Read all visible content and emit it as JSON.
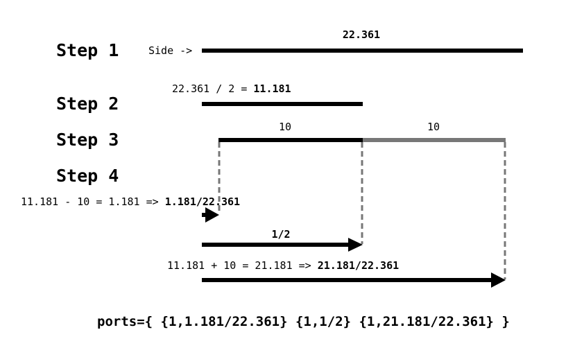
{
  "steps": {
    "step1": "Step 1",
    "step2": "Step 2",
    "step3": "Step 3",
    "step4": "Step 4"
  },
  "step1": {
    "side_label": "Side ->",
    "length": "22.361"
  },
  "step2": {
    "expression": "22.361 / 2 = ",
    "result": "11.181"
  },
  "step3": {
    "segment_black": "10",
    "segment_gray": "10"
  },
  "step4": {
    "port1_expression": "11.181 - 10 = 1.181 => ",
    "port1_result": "1.181/22.361",
    "port2_label": "1/2",
    "port3_expression": "11.181 + 10 = 21.181 => ",
    "port3_result": "21.181/22.361"
  },
  "ports_result": "ports={ {1,1.181/22.361} {1,1/2} {1,21.181/22.361} }",
  "colors": {
    "primary": "#000000",
    "secondary": "#777777"
  }
}
